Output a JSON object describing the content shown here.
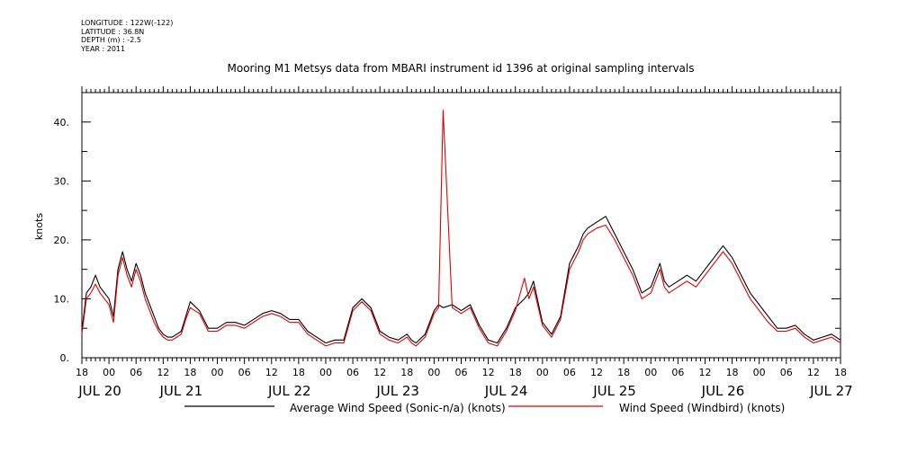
{
  "meta": {
    "longitude": "LONGITUDE : 122W(-122)",
    "latitude": "LATITUDE : 36.8N",
    "depth": "DEPTH (m) : -2.5",
    "year": "YEAR : 2011"
  },
  "chart_data": {
    "type": "line",
    "title": "Mooring M1 Metsys data from MBARI instrument id 1396 at original sampling intervals",
    "ylabel": "knots",
    "xlabel": "",
    "ylim": [
      0,
      45
    ],
    "yticks": [
      0,
      10,
      20,
      30,
      40
    ],
    "ytick_labels": [
      "0.",
      "10.",
      "20.",
      "30.",
      "40."
    ],
    "xlim_hours": [
      0,
      168
    ],
    "x_hour_labels": [
      "18",
      "00",
      "06",
      "12",
      "18",
      "00",
      "06",
      "12",
      "18",
      "00",
      "06",
      "12",
      "18",
      "00",
      "06",
      "12",
      "18",
      "00",
      "06",
      "12",
      "18",
      "00",
      "06",
      "12",
      "18",
      "00",
      "06",
      "12",
      "18"
    ],
    "day_labels": [
      {
        "hour": 0,
        "label": "JUL 20"
      },
      {
        "hour": 18,
        "label": "JUL 21"
      },
      {
        "hour": 42,
        "label": "JUL 22"
      },
      {
        "hour": 66,
        "label": "JUL 23"
      },
      {
        "hour": 90,
        "label": "JUL 24"
      },
      {
        "hour": 114,
        "label": "JUL 25"
      },
      {
        "hour": 138,
        "label": "JUL 26"
      },
      {
        "hour": 162,
        "label": "JUL 27"
      }
    ],
    "series": [
      {
        "name": "Average Wind Speed (Sonic-n/a) (knots)",
        "color": "#000000",
        "x": [
          0,
          1,
          2,
          3,
          4,
          5,
          6,
          7,
          8,
          9,
          10,
          11,
          12,
          13,
          14,
          15,
          16,
          17,
          18,
          19,
          20,
          21,
          22,
          23,
          24,
          26,
          28,
          30,
          32,
          34,
          36,
          38,
          40,
          42,
          44,
          46,
          48,
          50,
          52,
          54,
          56,
          58,
          60,
          62,
          64,
          66,
          68,
          70,
          72,
          73,
          74,
          76,
          78,
          79,
          80,
          82,
          84,
          86,
          88,
          90,
          92,
          94,
          96,
          98,
          99,
          100,
          102,
          104,
          106,
          108,
          110,
          111,
          112,
          114,
          116,
          118,
          120,
          122,
          124,
          126,
          127,
          128,
          129,
          130,
          132,
          134,
          136,
          138,
          140,
          142,
          144,
          146,
          148,
          150,
          152,
          154,
          156,
          158,
          160,
          162,
          164,
          166,
          168
        ],
        "y": [
          4.5,
          11,
          12,
          14,
          12,
          11,
          10,
          7,
          15,
          18,
          15,
          13,
          16,
          14,
          11,
          9,
          7,
          5,
          4,
          3.5,
          3.5,
          4,
          4.5,
          7,
          9.5,
          8,
          5,
          5,
          6,
          6,
          5.5,
          6.5,
          7.5,
          8,
          7.5,
          6.5,
          6.5,
          4.5,
          3.5,
          2.5,
          3,
          3,
          8.5,
          10,
          8.5,
          4.5,
          3.5,
          3,
          4,
          3,
          2.5,
          4,
          8,
          9,
          8.5,
          9,
          8,
          9,
          5.5,
          3,
          2.5,
          5,
          8.5,
          10,
          11,
          13,
          6,
          4,
          7,
          16,
          19,
          21,
          22,
          23,
          24,
          21,
          18,
          15,
          11,
          12,
          14,
          16,
          13,
          12,
          13,
          14,
          13,
          15,
          17,
          19,
          17,
          14,
          11,
          9,
          7,
          5,
          5,
          5.5,
          4,
          3,
          3.5,
          4,
          3
        ]
      },
      {
        "name": "Wind Speed (Windbird) (knots)",
        "color": "#e00000",
        "x": [
          0,
          1,
          2,
          3,
          4,
          5,
          6,
          7,
          8,
          9,
          10,
          11,
          12,
          13,
          14,
          15,
          16,
          17,
          18,
          19,
          20,
          21,
          22,
          23,
          24,
          26,
          28,
          30,
          32,
          34,
          36,
          38,
          40,
          42,
          44,
          46,
          48,
          50,
          52,
          54,
          56,
          58,
          60,
          62,
          64,
          66,
          68,
          70,
          72,
          73,
          74,
          76,
          78,
          79,
          80,
          82,
          84,
          86,
          88,
          90,
          92,
          94,
          96,
          98,
          99,
          100,
          102,
          104,
          106,
          108,
          110,
          111,
          112,
          114,
          116,
          118,
          120,
          122,
          124,
          126,
          127,
          128,
          129,
          130,
          132,
          134,
          136,
          138,
          140,
          142,
          144,
          146,
          148,
          150,
          152,
          154,
          156,
          158,
          160,
          162,
          164,
          166,
          168
        ],
        "y": [
          4,
          10,
          11,
          12.5,
          11,
          10,
          9,
          6,
          14,
          17,
          14,
          12,
          15,
          13,
          10,
          8,
          6,
          4.5,
          3.5,
          3,
          3,
          3.5,
          4,
          6.5,
          8.5,
          7.5,
          4.5,
          4.5,
          5.5,
          5.5,
          5,
          6,
          7,
          7.5,
          7,
          6,
          6,
          4,
          3,
          2,
          2.5,
          2.5,
          8,
          9.5,
          8,
          4,
          3,
          2.5,
          3.5,
          2.5,
          2,
          3.5,
          7.5,
          8.5,
          42,
          8.5,
          7.5,
          8.5,
          5,
          2.5,
          2,
          4.5,
          8,
          13.5,
          10,
          12,
          5.5,
          3.5,
          6.5,
          15,
          18,
          20,
          21,
          22,
          22.5,
          20,
          17,
          14,
          10,
          11,
          13,
          15,
          12,
          11,
          12,
          13,
          12,
          14,
          16,
          18,
          16,
          13,
          10,
          8,
          6,
          4.5,
          4.5,
          5,
          3.5,
          2.5,
          3,
          3.5,
          2.5
        ]
      }
    ],
    "legend": [
      {
        "label": "Average Wind Speed (Sonic-n/a) (knots)",
        "color": "#000000"
      },
      {
        "label": "Wind Speed (Windbird) (knots)",
        "color": "#e00000"
      }
    ],
    "legend_position": "bottom"
  }
}
